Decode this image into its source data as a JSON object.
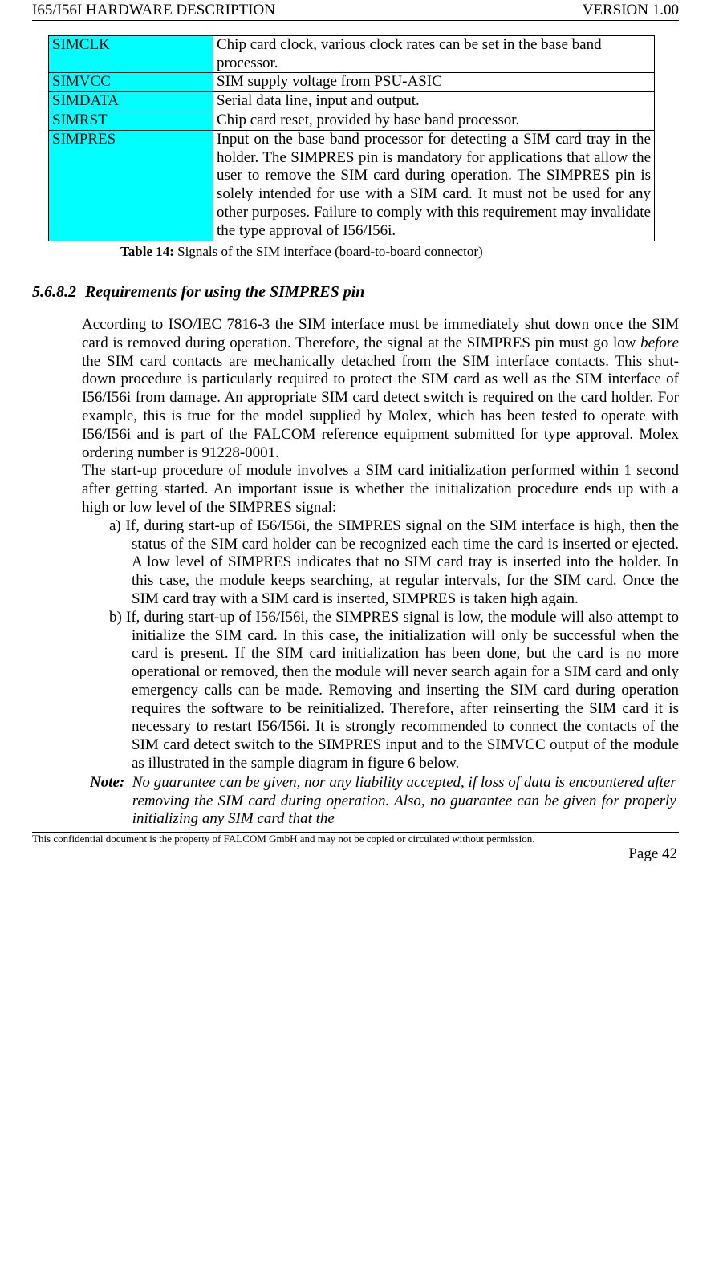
{
  "header": {
    "left": "I65/I56I HARDWARE DESCRIPTION",
    "right": "VERSION 1.00"
  },
  "table": {
    "rows": [
      {
        "name": "SIMCLK",
        "desc": "Chip card clock, various clock rates can be set in the base band processor."
      },
      {
        "name": "SIMVCC",
        "desc": "SIM supply voltage from PSU-ASIC"
      },
      {
        "name": "SIMDATA",
        "desc": "Serial data line, input and output."
      },
      {
        "name": "SIMRST",
        "desc": "Chip card reset, provided by base band processor."
      },
      {
        "name": "SIMPRES",
        "desc": "Input on the base band processor for detecting a SIM card tray in the holder. The SIMPRES pin is mandatory for applications that allow the user to remove the SIM card during operation. The SIMPRES pin is solely intended for use with a SIM card. It must not be used for any other purposes. Failure to comply with this requirement may invalidate the type approval of I56/I56i."
      }
    ]
  },
  "caption": {
    "label": "Table 14:",
    "text": " Signals of the SIM interface (board-to-board connector)"
  },
  "section": {
    "number": "5.6.8.2",
    "title": "Requirements for using the SIMPRES pin"
  },
  "para1a": "According to ISO/IEC 7816-3 the SIM interface must be immediately shut down once the SIM card is removed during operation. Therefore, the signal at the SIMPRES pin must go low ",
  "para1i": "before",
  "para1b": " the SIM card contacts are mechanically detached from the SIM interface contacts. This shut-down procedure is particularly required to protect the SIM card as well as the SIM interface of I56/I56i from damage. An appropriate SIM card detect switch is required on the card holder. For example, this is true for the model supplied by Molex, which has been tested to operate with I56/I56i and is part of the FALCOM reference equipment submitted for type approval. Molex ordering number is 91228-0001.",
  "para2": "The start-up procedure of module involves a SIM card initialization performed within 1 second after getting started. An important issue is whether the initialization procedure ends up with a high or low level of the SIMPRES signal:",
  "list": {
    "a": "a) If, during start-up of I56/I56i, the SIMPRES signal on the SIM interface is high, then the status of the SIM card holder can be recognized each time the card is inserted or ejected. A low level of SIMPRES indicates that no SIM card tray is inserted into the holder. In this case, the module keeps searching, at regular intervals, for the SIM card. Once the SIM card tray with a SIM card is inserted, SIMPRES is taken high again.",
    "b": "b) If, during start-up of I56/I56i, the SIMPRES signal is low, the module will also attempt to initialize the SIM card. In this case, the initialization will only be successful when the card is present. If the SIM card initialization has been done, but the card is no more operational or removed, then the module will never search again for a SIM card and only emergency calls can be made. Removing and inserting the SIM card during operation requires the software to be reinitialized. Therefore, after reinserting the SIM card it is necessary to restart I56/I56i. It is strongly recommended to connect the contacts of the SIM card detect switch to the SIMPRES input and to the SIMVCC output of the module as illustrated in the sample diagram in figure 6 below."
  },
  "note": {
    "label": "Note:",
    "text": "No guarantee can be given, nor any liability accepted, if loss of data is encountered after removing the SIM card during operation. Also, no guarantee can be given for properly initializing any SIM card that the"
  },
  "footer": {
    "text": "This confidential document is the property of FALCOM GmbH and may not be copied or circulated without permission.",
    "page": "Page 42"
  }
}
